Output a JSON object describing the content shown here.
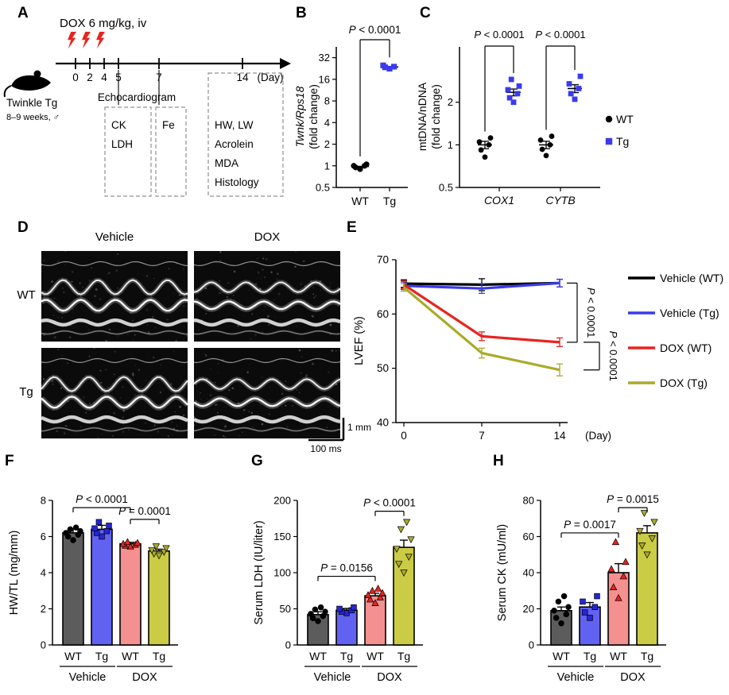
{
  "colors": {
    "red": "#e8231f",
    "blue": "#3a3aee",
    "olive": "#a9ab2b",
    "bar_gray": "#5c5c5c",
    "bar_blue": "#6262f2",
    "bar_pink": "#f49090",
    "bar_olive": "#cacc45",
    "black": "#000000"
  },
  "panels": {
    "a": {
      "label": "A",
      "dox_injection": "DOX 6 mg/kg, iv",
      "mouse_name": "Twinkle Tg",
      "mouse_age": "8–9 weeks, ♂",
      "timeline_days": [
        "0",
        "2",
        "4",
        "5",
        "7",
        "14"
      ],
      "day_unit": "(Day)",
      "echo_label": "Echocardiogram",
      "box1_items": [
        "CK",
        "LDH"
      ],
      "box2_items": [
        "Fe"
      ],
      "box3_items": [
        "HW, LW",
        "Acrolein",
        "MDA",
        "Histology"
      ]
    },
    "b": {
      "label": "B",
      "ylabel_line1": "Twnk/Rps18",
      "ylabel_line2": "(fold change)"
    },
    "c": {
      "label": "C",
      "ylabel_line1": "mtDNA/nDNA",
      "ylabel_line2": "(fold change)",
      "legend": [
        {
          "label": "WT",
          "marker": "circle",
          "color": "#000000"
        },
        {
          "label": "Tg",
          "marker": "square",
          "color": "#3a3aee"
        }
      ]
    },
    "d": {
      "label": "D",
      "col_labels": [
        "Vehicle",
        "DOX"
      ],
      "row_labels": [
        "WT",
        "Tg"
      ],
      "scalebar_vertical": "1 mm",
      "scalebar_horizontal": "100 ms"
    },
    "e": {
      "label": "E"
    },
    "f": {
      "label": "F"
    },
    "g": {
      "label": "G"
    },
    "h": {
      "label": "H"
    }
  },
  "chart_data": [
    {
      "id": "B",
      "type": "scatter",
      "ylabel": "Twnk/Rps18 (fold change)",
      "yscale": "log2",
      "yticks": [
        "0.5",
        "1",
        "2",
        "4",
        "8",
        "16",
        "32"
      ],
      "categories": [
        "WT",
        "Tg"
      ],
      "series": [
        {
          "name": "WT",
          "marker": "circle",
          "color": "#000000",
          "values": [
            0.9,
            0.95,
            1.0,
            1.0,
            1.05
          ]
        },
        {
          "name": "Tg",
          "marker": "square",
          "color": "#3a3aee",
          "values": [
            22.5,
            23.5,
            24.0,
            25.0
          ]
        }
      ],
      "annotation": "P < 0.0001"
    },
    {
      "id": "C",
      "type": "scatter",
      "ylabel": "mtDNA/nDNA (fold change)",
      "yscale": "log2",
      "yticks": [
        "0.5",
        "1",
        "2"
      ],
      "categories": [
        "COX1",
        "CYTB"
      ],
      "series": [
        {
          "name": "WT",
          "marker": "circle",
          "color": "#000000",
          "values": {
            "COX1": [
              0.82,
              0.92,
              1.0,
              1.05,
              1.12
            ],
            "CYTB": [
              0.84,
              0.93,
              1.0,
              1.08,
              1.15
            ]
          },
          "mean": {
            "COX1": 1.0,
            "CYTB": 1.0
          },
          "sem": {
            "COX1": 0.06,
            "CYTB": 0.06
          }
        },
        {
          "name": "Tg",
          "marker": "square",
          "color": "#3a3aee",
          "values": {
            "COX1": [
              2.0,
              2.15,
              2.3,
              2.45,
              2.6,
              2.9
            ],
            "CYTB": [
              2.1,
              2.3,
              2.5,
              2.7,
              3.05
            ]
          },
          "mean": {
            "COX1": 2.35,
            "CYTB": 2.5
          },
          "sem": {
            "COX1": 0.13,
            "CYTB": 0.16
          }
        }
      ],
      "annotations": [
        {
          "category": "COX1",
          "text": "P < 0.0001"
        },
        {
          "category": "CYTB",
          "text": "P < 0.0001"
        }
      ]
    },
    {
      "id": "E",
      "type": "line",
      "ylabel": "LVEF (%)",
      "xlabel": "(Day)",
      "x": [
        0,
        7,
        14
      ],
      "ylim": [
        40,
        70
      ],
      "yticks": [
        40,
        50,
        60,
        70
      ],
      "series": [
        {
          "name": "Vehicle (WT)",
          "color": "#000000",
          "values": [
            65.6,
            65.4,
            65.7
          ],
          "sem": [
            0.7,
            1.1,
            0.7
          ]
        },
        {
          "name": "Vehicle (Tg)",
          "color": "#3a3aee",
          "values": [
            65.2,
            64.7,
            65.7
          ],
          "sem": [
            0.7,
            0.9,
            0.7
          ]
        },
        {
          "name": "DOX (WT)",
          "color": "#e8231f",
          "values": [
            65.4,
            55.9,
            54.8
          ],
          "sem": [
            0.7,
            0.8,
            0.8
          ]
        },
        {
          "name": "DOX (Tg)",
          "color": "#a9ab2b",
          "values": [
            64.9,
            52.8,
            49.7
          ],
          "sem": [
            0.7,
            0.9,
            1.1
          ]
        }
      ],
      "annotations": [
        {
          "text": "P < 0.0001",
          "between": [
            "Vehicle (Tg)",
            "DOX (WT)"
          ]
        },
        {
          "text": "P < 0.0001",
          "between": [
            "DOX (WT)",
            "DOX (Tg)"
          ]
        }
      ]
    },
    {
      "id": "F",
      "type": "bar",
      "ylabel": "HW/TL (mg/mm)",
      "ylim": [
        0,
        8
      ],
      "yticks": [
        0,
        2,
        4,
        6,
        8
      ],
      "categories": [
        "WT",
        "Tg",
        "WT",
        "Tg"
      ],
      "group_labels": [
        "Vehicle",
        "DOX"
      ],
      "values": [
        6.2,
        6.4,
        5.6,
        5.2
      ],
      "sem": [
        0.2,
        0.22,
        0.08,
        0.1
      ],
      "points": [
        [
          5.8,
          6.0,
          6.1,
          6.2,
          6.3,
          6.4,
          6.5
        ],
        [
          6.0,
          6.2,
          6.3,
          6.45,
          6.6,
          6.8
        ],
        [
          5.45,
          5.5,
          5.55,
          5.6,
          5.65,
          5.7
        ],
        [
          4.95,
          5.05,
          5.15,
          5.25,
          5.35,
          5.45
        ]
      ],
      "bar_fills": [
        "#5c5c5c",
        "#6262f2",
        "#f49090",
        "#cacc45"
      ],
      "point_colors": [
        "#000000",
        "#2525d8",
        "#e8231f",
        "#a9ab2b"
      ],
      "markers": [
        "circle",
        "square",
        "triangle-up",
        "triangle-down"
      ],
      "annotations": [
        {
          "text": "P < 0.0001",
          "from": 0,
          "to": 2,
          "y": 7.6
        },
        {
          "text": "P = 0.0001",
          "from": 2,
          "to": 3,
          "y": 6.95
        }
      ]
    },
    {
      "id": "G",
      "type": "bar",
      "ylabel": "Serum LDH (IU/liter)",
      "ylim": [
        0,
        200
      ],
      "yticks": [
        0,
        50,
        100,
        150,
        200
      ],
      "categories": [
        "WT",
        "Tg",
        "WT",
        "Tg"
      ],
      "group_labels": [
        "Vehicle",
        "DOX"
      ],
      "values": [
        42,
        48,
        68,
        135
      ],
      "sem": [
        4,
        2.5,
        3.5,
        10
      ],
      "points": [
        [
          33,
          37,
          40,
          43,
          46,
          49,
          52
        ],
        [
          44,
          46,
          48,
          50,
          52
        ],
        [
          58,
          63,
          66,
          69,
          72,
          75,
          78
        ],
        [
          100,
          112,
          122,
          133,
          146,
          160,
          170
        ]
      ],
      "bar_fills": [
        "#5c5c5c",
        "#6262f2",
        "#f49090",
        "#cacc45"
      ],
      "point_colors": [
        "#000000",
        "#2525d8",
        "#e8231f",
        "#a9ab2b"
      ],
      "markers": [
        "circle",
        "square",
        "triangle-up",
        "triangle-down"
      ],
      "annotations": [
        {
          "text": "P = 0.0156",
          "from": 0,
          "to": 2,
          "y": 95
        },
        {
          "text": "P < 0.0001",
          "from": 2,
          "to": 3,
          "y": 185
        }
      ]
    },
    {
      "id": "H",
      "type": "bar",
      "ylabel": "Serum CK (mU/ml)",
      "ylim": [
        0,
        80
      ],
      "yticks": [
        0,
        20,
        40,
        60,
        80
      ],
      "categories": [
        "WT",
        "Tg",
        "WT",
        "Tg"
      ],
      "group_labels": [
        "Vehicle",
        "DOX"
      ],
      "values": [
        19,
        21,
        40,
        62
      ],
      "sem": [
        2,
        2.5,
        5,
        4
      ],
      "points": [
        [
          12,
          15,
          17,
          19,
          21,
          24,
          27
        ],
        [
          15,
          18,
          21,
          24,
          27
        ],
        [
          26,
          32,
          38,
          42,
          46,
          57
        ],
        [
          50,
          55,
          59,
          63,
          68,
          73
        ]
      ],
      "bar_fills": [
        "#5c5c5c",
        "#6262f2",
        "#f49090",
        "#cacc45"
      ],
      "point_colors": [
        "#000000",
        "#2525d8",
        "#e8231f",
        "#a9ab2b"
      ],
      "markers": [
        "circle",
        "square",
        "triangle-up",
        "triangle-down"
      ],
      "annotations": [
        {
          "text": "P = 0.0017",
          "from": 0,
          "to": 2,
          "y": 62
        },
        {
          "text": "P = 0.0015",
          "from": 2,
          "to": 3,
          "y": 76
        }
      ]
    }
  ]
}
